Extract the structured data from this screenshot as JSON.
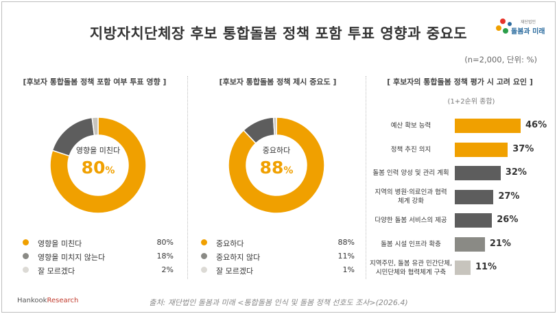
{
  "title": "지방자치단체장 후보 통합돌봄 정책 포함 투표 영향과 중요도",
  "logo": {
    "text": "돌봄과 미래",
    "small": "재단법인"
  },
  "note": "(n=2,000, 단위: %)",
  "colors": {
    "accent": "#f0a000",
    "dark": "#5d5d5d",
    "mid": "#8a8a85",
    "light": "#c7c4bd"
  },
  "chart_data": [
    {
      "type": "pie",
      "title": "[후보자 통합돌봄 정책 포함 여부 투표 영향 ]",
      "center_label": "영향을 미친다",
      "center_value": "80",
      "center_unit": "%",
      "categories": [
        "영향을 미친다",
        "영향을 미치지 않는다",
        "잘 모르겠다"
      ],
      "values": [
        80,
        18,
        2
      ],
      "value_labels": [
        "80%",
        "18%",
        "2%"
      ]
    },
    {
      "type": "pie",
      "title": "[후보자 통합돌봄 정책 제시 중요도 ]",
      "center_label": "중요하다",
      "center_value": "88",
      "center_unit": "%",
      "categories": [
        "중요하다",
        "중요하지 않다",
        "잘 모르겠다"
      ],
      "values": [
        88,
        11,
        1
      ],
      "value_labels": [
        "88%",
        "11%",
        "1%"
      ]
    },
    {
      "type": "bar",
      "title": "[ 후보자의 통합돌봄 정책 평가 시 고려 요인 ]",
      "subtitle": "(1+2순위 종합)",
      "categories": [
        [
          "예산 확보 능력"
        ],
        [
          "정책 추진 의지"
        ],
        [
          "돌봄 인력 양성 및 관리 계획"
        ],
        [
          "지역의 병원·의료인과 협력",
          "체계 강화"
        ],
        [
          "다양한 돌봄 서비스의 제공"
        ],
        [
          "돌봄 시설 인프라 확충"
        ],
        [
          "지역주민, 돌봄 유관 민간단체,",
          "시민단체와 협력체계 구축"
        ]
      ],
      "values": [
        46,
        37,
        32,
        27,
        26,
        21,
        11
      ],
      "value_labels": [
        "46%",
        "37%",
        "32%",
        "27%",
        "26%",
        "21%",
        "11%"
      ],
      "bar_colors": [
        "#f0a000",
        "#f0a000",
        "#5d5d5d",
        "#5d5d5d",
        "#5d5d5d",
        "#8a8a85",
        "#c7c4bd"
      ]
    }
  ],
  "source": "출처: 재단법인 돌봄과 미래 <통합돌봄 인식 및 돌봄 정책 선호도 조사>(2026.4)",
  "brand": {
    "part1": "Hankook",
    "part2": "Research"
  }
}
